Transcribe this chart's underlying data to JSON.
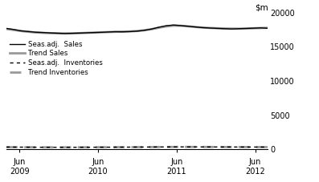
{
  "ylim": [
    0,
    20000
  ],
  "yticks": [
    0,
    5000,
    10000,
    15000,
    20000
  ],
  "ytick_labels": [
    "0",
    "5000",
    "10000",
    "15000",
    "20000"
  ],
  "xlim_start": 2009.25,
  "xlim_end": 2012.58,
  "xtick_positions": [
    2009.417,
    2010.417,
    2011.417,
    2012.417
  ],
  "xtick_labels_line1": [
    "Jun",
    "Jun",
    "Jun",
    "Jun"
  ],
  "xtick_labels_line2": [
    "2009",
    "2010",
    "2011",
    "2012"
  ],
  "seas_sales": [
    17700,
    17550,
    17350,
    17250,
    17150,
    17100,
    17050,
    17000,
    16950,
    16980,
    17020,
    17060,
    17090,
    17130,
    17180,
    17220,
    17200,
    17240,
    17300,
    17420,
    17620,
    17880,
    18100,
    18200,
    18120,
    18020,
    17920,
    17820,
    17760,
    17710,
    17660,
    17620,
    17660,
    17700,
    17740,
    17780,
    17720
  ],
  "trend_sales": [
    17620,
    17470,
    17320,
    17210,
    17110,
    17055,
    17010,
    16990,
    16975,
    16985,
    17005,
    17050,
    17095,
    17130,
    17165,
    17205,
    17235,
    17265,
    17330,
    17440,
    17590,
    17810,
    17990,
    18110,
    18090,
    18010,
    17910,
    17830,
    17770,
    17730,
    17695,
    17675,
    17665,
    17685,
    17725,
    17765,
    17790
  ],
  "seas_inv": [
    320,
    315,
    308,
    300,
    295,
    290,
    287,
    283,
    282,
    284,
    287,
    290,
    294,
    297,
    301,
    305,
    308,
    311,
    316,
    321,
    326,
    331,
    336,
    341,
    345,
    343,
    341,
    338,
    335,
    332,
    330,
    327,
    325,
    322,
    320,
    318,
    315
  ],
  "trend_inv": [
    308,
    303,
    297,
    293,
    290,
    288,
    286,
    284,
    284,
    285,
    287,
    290,
    293,
    296,
    299,
    302,
    305,
    308,
    313,
    318,
    324,
    329,
    334,
    338,
    341,
    341,
    339,
    336,
    333,
    331,
    329,
    327,
    325,
    322,
    320,
    318,
    316
  ],
  "n_points": 37,
  "seas_sales_color": "#000000",
  "trend_sales_color": "#999999",
  "seas_inv_color": "#000000",
  "trend_inv_color": "#999999",
  "background_color": "#ffffff",
  "legend_labels": [
    "Seas.adj.  Sales",
    "Trend Sales",
    "Seas.adj.  Inventories",
    "Trend Inventories"
  ]
}
